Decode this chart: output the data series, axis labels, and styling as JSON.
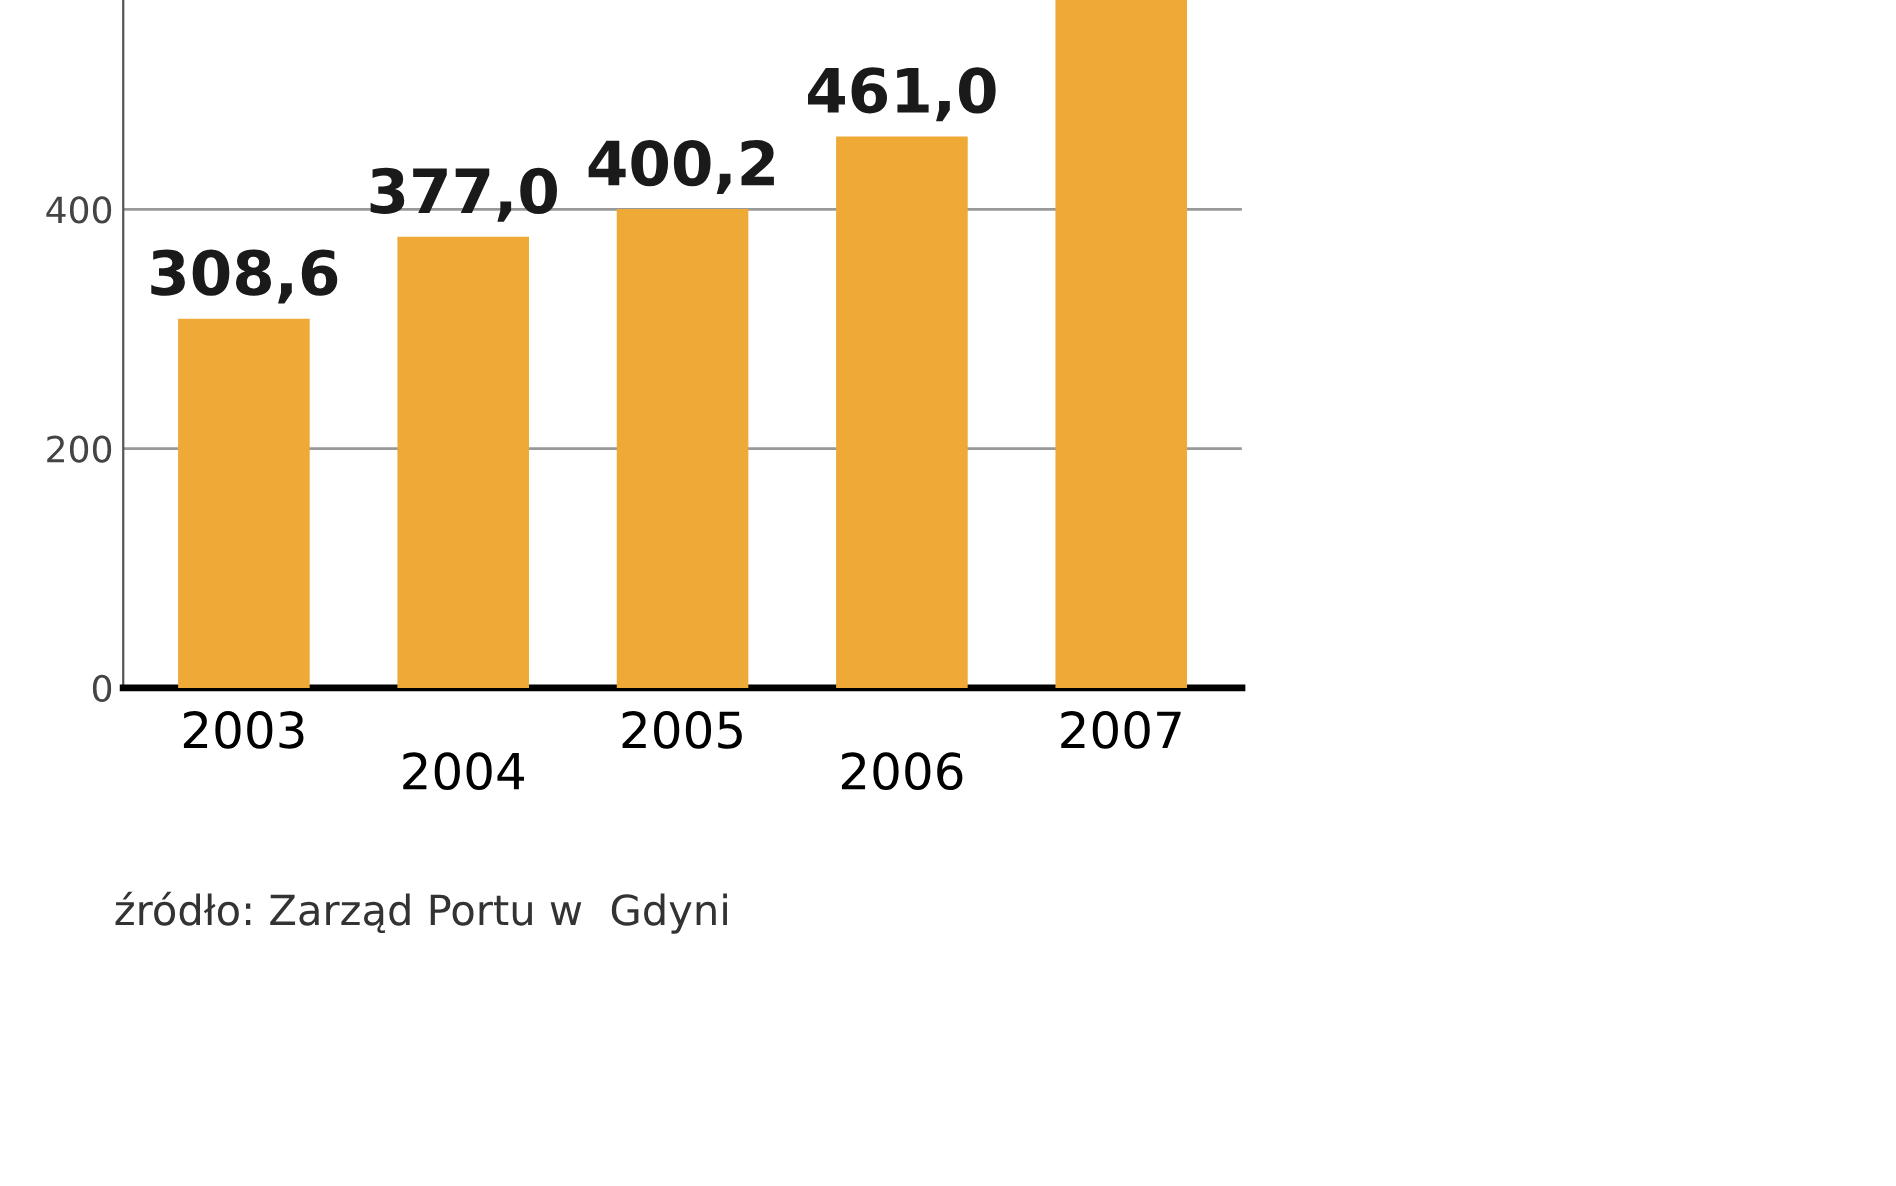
{
  "chart_data": {
    "type": "bar",
    "categories": [
      "2003",
      "2004",
      "2005",
      "2006",
      "2007"
    ],
    "values": [
      308.6,
      377.0,
      400.2,
      461.0,
      575
    ],
    "value_labels": [
      "308,6",
      "377,0",
      "400,2",
      "461,0",
      null
    ],
    "color": "#eea936",
    "ylim": [
      0,
      575
    ],
    "yticks": [
      0,
      200,
      400
    ],
    "grid": "y",
    "annotations": [
      "źródło: Zarząd Portu w  Gdyni"
    ]
  }
}
